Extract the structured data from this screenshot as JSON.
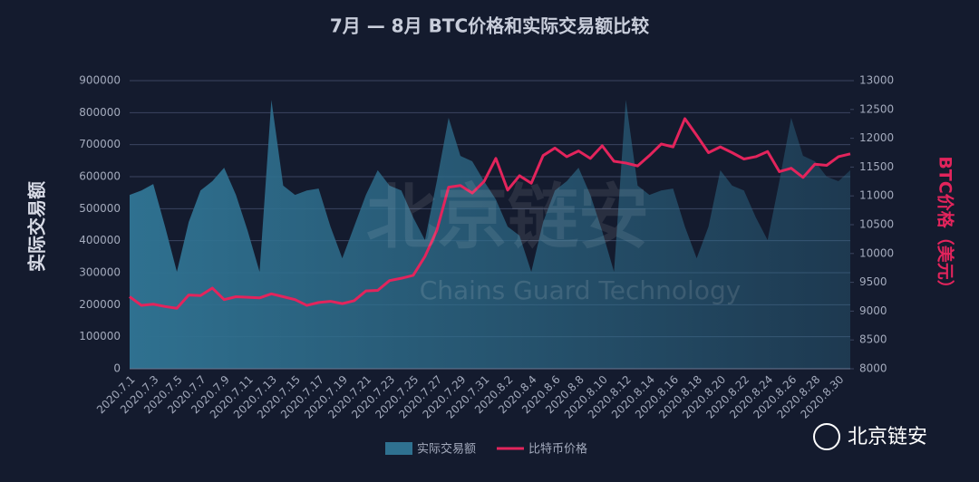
{
  "chart_data": {
    "type": "area_line",
    "title": "7月 — 8月 BTC价格和实际交易额比较",
    "y_label": "实际交易额",
    "y2_label": "BTC价格（美元）",
    "watermark": "北京链安",
    "watermark_sub": "Chains Guard Technology",
    "brand": "北京链安",
    "categories": [
      "2020.7.1",
      null,
      "2020.7.3",
      null,
      "2020.7.5",
      null,
      "2020.7.7",
      null,
      "2020.7.9",
      null,
      "2020.7.11",
      null,
      "2020.7.13",
      null,
      "2020.7.15",
      null,
      "2020.7.17",
      null,
      "2020.7.19",
      null,
      "2020.7.21",
      null,
      "2020.7.23",
      null,
      "2020.7.25",
      null,
      "2020.7.27",
      null,
      "2020.7.29",
      null,
      "2020.7.31",
      null,
      "2020.8.2",
      null,
      "2020.8.4",
      null,
      "2020.8.6",
      null,
      "2020.8.8",
      null,
      "2020.8.10",
      null,
      "2020.8.12",
      null,
      "2020.8.14",
      null,
      "2020.8.16",
      null,
      "2020.8.18",
      null,
      "2020.8.20",
      null,
      "2020.8.22",
      null,
      "2020.8.24",
      null,
      "2020.8.26",
      null,
      "2020.8.28",
      null,
      "2020.8.30",
      null
    ],
    "series": [
      {
        "name": "实际交易额",
        "kind": "area",
        "color": "#2f7190",
        "values": [
          543000,
          557000,
          577000,
          444000,
          303000,
          458000,
          557000,
          586000,
          628000,
          543000,
          430000,
          303000,
          840000,
          572000,
          543000,
          557000,
          563000,
          444000,
          345000,
          444000,
          543000,
          620000,
          572000,
          557000,
          473000,
          402000,
          586000,
          784000,
          665000,
          648000,
          586000,
          529000,
          444000,
          416000,
          303000,
          458000,
          557000,
          586000,
          628000,
          543000,
          430000,
          303000,
          840000,
          572000,
          543000,
          557000,
          563000,
          444000,
          345000,
          444000,
          620000,
          572000,
          557000,
          473000,
          402000,
          586000,
          784000,
          665000,
          648000,
          600000,
          586000,
          620000
        ]
      },
      {
        "name": "比特币价格",
        "kind": "line",
        "axis": "y2",
        "color": "#e3245c",
        "values": [
          9250,
          9100,
          9120,
          9080,
          9050,
          9280,
          9270,
          9400,
          9200,
          9250,
          9240,
          9230,
          9300,
          9250,
          9200,
          9100,
          9150,
          9170,
          9130,
          9180,
          9350,
          9360,
          9530,
          9570,
          9620,
          9950,
          10400,
          11150,
          11180,
          11050,
          11250,
          11650,
          11100,
          11350,
          11220,
          11700,
          11830,
          11680,
          11780,
          11650,
          11870,
          11600,
          11570,
          11520,
          11700,
          11900,
          11850,
          12340,
          12050,
          11750,
          11850,
          11750,
          11640,
          11680,
          11770,
          11420,
          11480,
          11320,
          11550,
          11530,
          11680,
          11730
        ]
      }
    ],
    "ylim": [
      0,
      900000
    ],
    "yticks": [
      0,
      100000,
      200000,
      300000,
      400000,
      500000,
      600000,
      700000,
      800000,
      900000
    ],
    "y2lim": [
      8000,
      13000
    ],
    "y2ticks": [
      8000,
      8500,
      9000,
      9500,
      10000,
      10500,
      11000,
      11500,
      12000,
      12500,
      13000
    ],
    "grid": true,
    "legend": "bottom"
  }
}
